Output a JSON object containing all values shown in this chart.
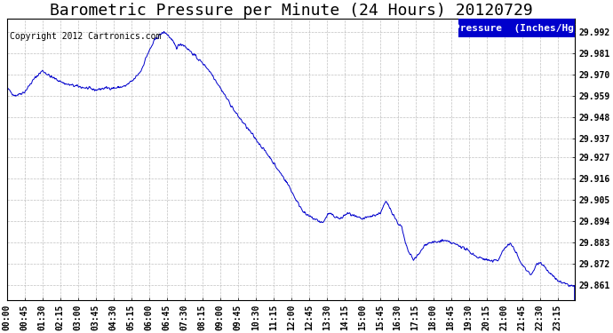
{
  "title": "Barometric Pressure per Minute (24 Hours) 20120729",
  "copyright_text": "Copyright 2012 Cartronics.com",
  "legend_text": "Pressure  (Inches/Hg)",
  "line_color": "#0000cc",
  "background_color": "#ffffff",
  "plot_bg_color": "#ffffff",
  "grid_color": "#b0b0b0",
  "yticks": [
    29.861,
    29.872,
    29.883,
    29.894,
    29.905,
    29.916,
    29.927,
    29.937,
    29.948,
    29.959,
    29.97,
    29.981,
    29.992
  ],
  "ylim": [
    29.853,
    29.999
  ],
  "xtick_labels": [
    "00:00",
    "00:45",
    "01:30",
    "02:15",
    "03:00",
    "03:45",
    "04:30",
    "05:15",
    "06:00",
    "06:45",
    "07:30",
    "08:15",
    "09:00",
    "09:45",
    "10:30",
    "11:15",
    "12:00",
    "12:45",
    "13:30",
    "14:15",
    "15:00",
    "15:45",
    "16:30",
    "17:15",
    "18:00",
    "18:45",
    "19:30",
    "20:15",
    "21:00",
    "21:45",
    "22:30",
    "23:15"
  ],
  "title_fontsize": 13,
  "axis_fontsize": 7,
  "copyright_fontsize": 7,
  "legend_fontsize": 8,
  "keypoints": [
    [
      0,
      29.963
    ],
    [
      20,
      29.959
    ],
    [
      45,
      29.961
    ],
    [
      70,
      29.968
    ],
    [
      90,
      29.972
    ],
    [
      110,
      29.969
    ],
    [
      130,
      29.967
    ],
    [
      150,
      29.965
    ],
    [
      175,
      29.964
    ],
    [
      200,
      29.963
    ],
    [
      225,
      29.962
    ],
    [
      250,
      29.963
    ],
    [
      275,
      29.963
    ],
    [
      300,
      29.964
    ],
    [
      320,
      29.967
    ],
    [
      340,
      29.972
    ],
    [
      355,
      29.98
    ],
    [
      375,
      29.988
    ],
    [
      390,
      29.991
    ],
    [
      400,
      29.992
    ],
    [
      410,
      29.99
    ],
    [
      420,
      29.987
    ],
    [
      430,
      29.984
    ],
    [
      440,
      29.986
    ],
    [
      450,
      29.985
    ],
    [
      460,
      29.983
    ],
    [
      470,
      29.981
    ],
    [
      480,
      29.979
    ],
    [
      490,
      29.977
    ],
    [
      505,
      29.974
    ],
    [
      520,
      29.97
    ],
    [
      535,
      29.965
    ],
    [
      550,
      29.96
    ],
    [
      565,
      29.955
    ],
    [
      580,
      29.95
    ],
    [
      595,
      29.946
    ],
    [
      610,
      29.942
    ],
    [
      625,
      29.938
    ],
    [
      640,
      29.934
    ],
    [
      655,
      29.93
    ],
    [
      670,
      29.926
    ],
    [
      685,
      29.921
    ],
    [
      700,
      29.917
    ],
    [
      715,
      29.912
    ],
    [
      725,
      29.908
    ],
    [
      735,
      29.904
    ],
    [
      745,
      29.901
    ],
    [
      755,
      29.898
    ],
    [
      760,
      29.897
    ],
    [
      770,
      29.896
    ],
    [
      780,
      29.895
    ],
    [
      790,
      29.894
    ],
    [
      800,
      29.893
    ],
    [
      815,
      29.898
    ],
    [
      825,
      29.897
    ],
    [
      835,
      29.896
    ],
    [
      845,
      29.895
    ],
    [
      855,
      29.897
    ],
    [
      865,
      29.898
    ],
    [
      875,
      29.897
    ],
    [
      885,
      29.896
    ],
    [
      900,
      29.895
    ],
    [
      915,
      29.896
    ],
    [
      930,
      29.897
    ],
    [
      945,
      29.898
    ],
    [
      960,
      29.904
    ],
    [
      970,
      29.901
    ],
    [
      980,
      29.897
    ],
    [
      990,
      29.893
    ],
    [
      1000,
      29.891
    ],
    [
      1010,
      29.882
    ],
    [
      1020,
      29.877
    ],
    [
      1030,
      29.874
    ],
    [
      1045,
      29.877
    ],
    [
      1060,
      29.882
    ],
    [
      1075,
      29.883
    ],
    [
      1090,
      29.883
    ],
    [
      1105,
      29.884
    ],
    [
      1120,
      29.883
    ],
    [
      1135,
      29.882
    ],
    [
      1150,
      29.881
    ],
    [
      1165,
      29.879
    ],
    [
      1180,
      29.877
    ],
    [
      1195,
      29.875
    ],
    [
      1200,
      29.875
    ],
    [
      1215,
      29.874
    ],
    [
      1230,
      29.873
    ],
    [
      1245,
      29.874
    ],
    [
      1255,
      29.878
    ],
    [
      1265,
      29.881
    ],
    [
      1275,
      29.882
    ],
    [
      1285,
      29.88
    ],
    [
      1300,
      29.873
    ],
    [
      1310,
      29.87
    ],
    [
      1320,
      29.868
    ],
    [
      1330,
      29.866
    ],
    [
      1340,
      29.871
    ],
    [
      1350,
      29.873
    ],
    [
      1360,
      29.871
    ],
    [
      1375,
      29.867
    ],
    [
      1390,
      29.864
    ],
    [
      1405,
      29.862
    ],
    [
      1420,
      29.861
    ],
    [
      1439,
      29.86
    ]
  ]
}
